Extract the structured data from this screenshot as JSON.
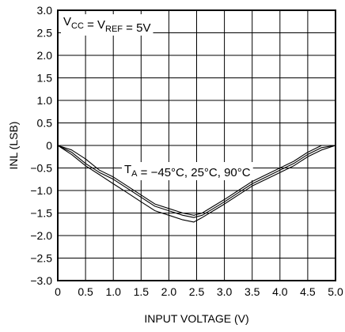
{
  "chart_data": {
    "type": "line",
    "xlabel": "INPUT VOLTAGE (V)",
    "ylabel": "INL (LSB)",
    "xlim": [
      0,
      5
    ],
    "ylim": [
      -3,
      3
    ],
    "x_ticks": [
      0,
      0.5,
      1,
      1.5,
      2,
      2.5,
      3,
      3.5,
      4,
      4.5,
      5
    ],
    "x_tick_labels": [
      "0",
      "0.5",
      "1.0",
      "1.5",
      "2.0",
      "2.5",
      "3.0",
      "3.5",
      "4.0",
      "4.5",
      "5.0"
    ],
    "y_ticks": [
      3,
      2.5,
      2,
      1.5,
      1,
      0.5,
      0,
      -0.5,
      -1,
      -1.5,
      -2,
      -2.5,
      -3
    ],
    "y_tick_labels": [
      "3.0",
      "2.5",
      "2.0",
      "1.5",
      "1.0",
      "0.5",
      "0",
      "−0.5",
      "−1.0",
      "−1.5",
      "−2.0",
      "−2.5",
      "−3.0"
    ],
    "grid": true,
    "annotations": [
      {
        "parts": [
          [
            "V",
            ""
          ],
          [
            "CC",
            "sub"
          ],
          [
            " = V",
            ""
          ],
          [
            "REF",
            "sub"
          ],
          [
            " = 5V",
            ""
          ]
        ],
        "text": "VCC = VREF = 5V"
      },
      {
        "parts": [
          [
            "T",
            ""
          ],
          [
            "A",
            "sub"
          ],
          [
            " = −45°C, 25°C, 90°C",
            ""
          ]
        ],
        "text": "TA = −45°C, 25°C, 90°C"
      }
    ],
    "series": [
      {
        "x": [
          0,
          0.25,
          0.5,
          0.75,
          1.0,
          1.25,
          1.5,
          1.75,
          2.0,
          2.25,
          2.45,
          2.6,
          2.8,
          3.0,
          3.25,
          3.5,
          3.75,
          4.0,
          4.25,
          4.5,
          4.75,
          5.0
        ],
        "y": [
          0,
          -0.2,
          -0.45,
          -0.65,
          -0.85,
          -1.05,
          -1.25,
          -1.45,
          -1.55,
          -1.65,
          -1.7,
          -1.6,
          -1.45,
          -1.3,
          -1.1,
          -0.9,
          -0.75,
          -0.6,
          -0.45,
          -0.25,
          -0.1,
          0.0
        ]
      },
      {
        "x": [
          0,
          0.25,
          0.5,
          0.75,
          1.0,
          1.25,
          1.5,
          1.75,
          2.0,
          2.25,
          2.45,
          2.6,
          2.8,
          3.0,
          3.25,
          3.5,
          3.75,
          4.0,
          4.25,
          4.5,
          4.75,
          5.0
        ],
        "y": [
          0,
          -0.15,
          -0.4,
          -0.6,
          -0.75,
          -0.95,
          -1.15,
          -1.35,
          -1.45,
          -1.55,
          -1.6,
          -1.55,
          -1.4,
          -1.25,
          -1.05,
          -0.85,
          -0.7,
          -0.55,
          -0.4,
          -0.2,
          -0.05,
          0.0
        ]
      },
      {
        "x": [
          0,
          0.25,
          0.5,
          0.75,
          1.0,
          1.25,
          1.5,
          1.75,
          2.0,
          2.25,
          2.45,
          2.6,
          2.8,
          3.0,
          3.25,
          3.5,
          3.75,
          4.0,
          4.25,
          4.5,
          4.75,
          5.0
        ],
        "y": [
          0,
          -0.1,
          -0.3,
          -0.55,
          -0.7,
          -0.9,
          -1.1,
          -1.3,
          -1.4,
          -1.5,
          -1.55,
          -1.5,
          -1.35,
          -1.2,
          -1.0,
          -0.8,
          -0.65,
          -0.5,
          -0.35,
          -0.15,
          0.0,
          0.0
        ]
      }
    ]
  }
}
